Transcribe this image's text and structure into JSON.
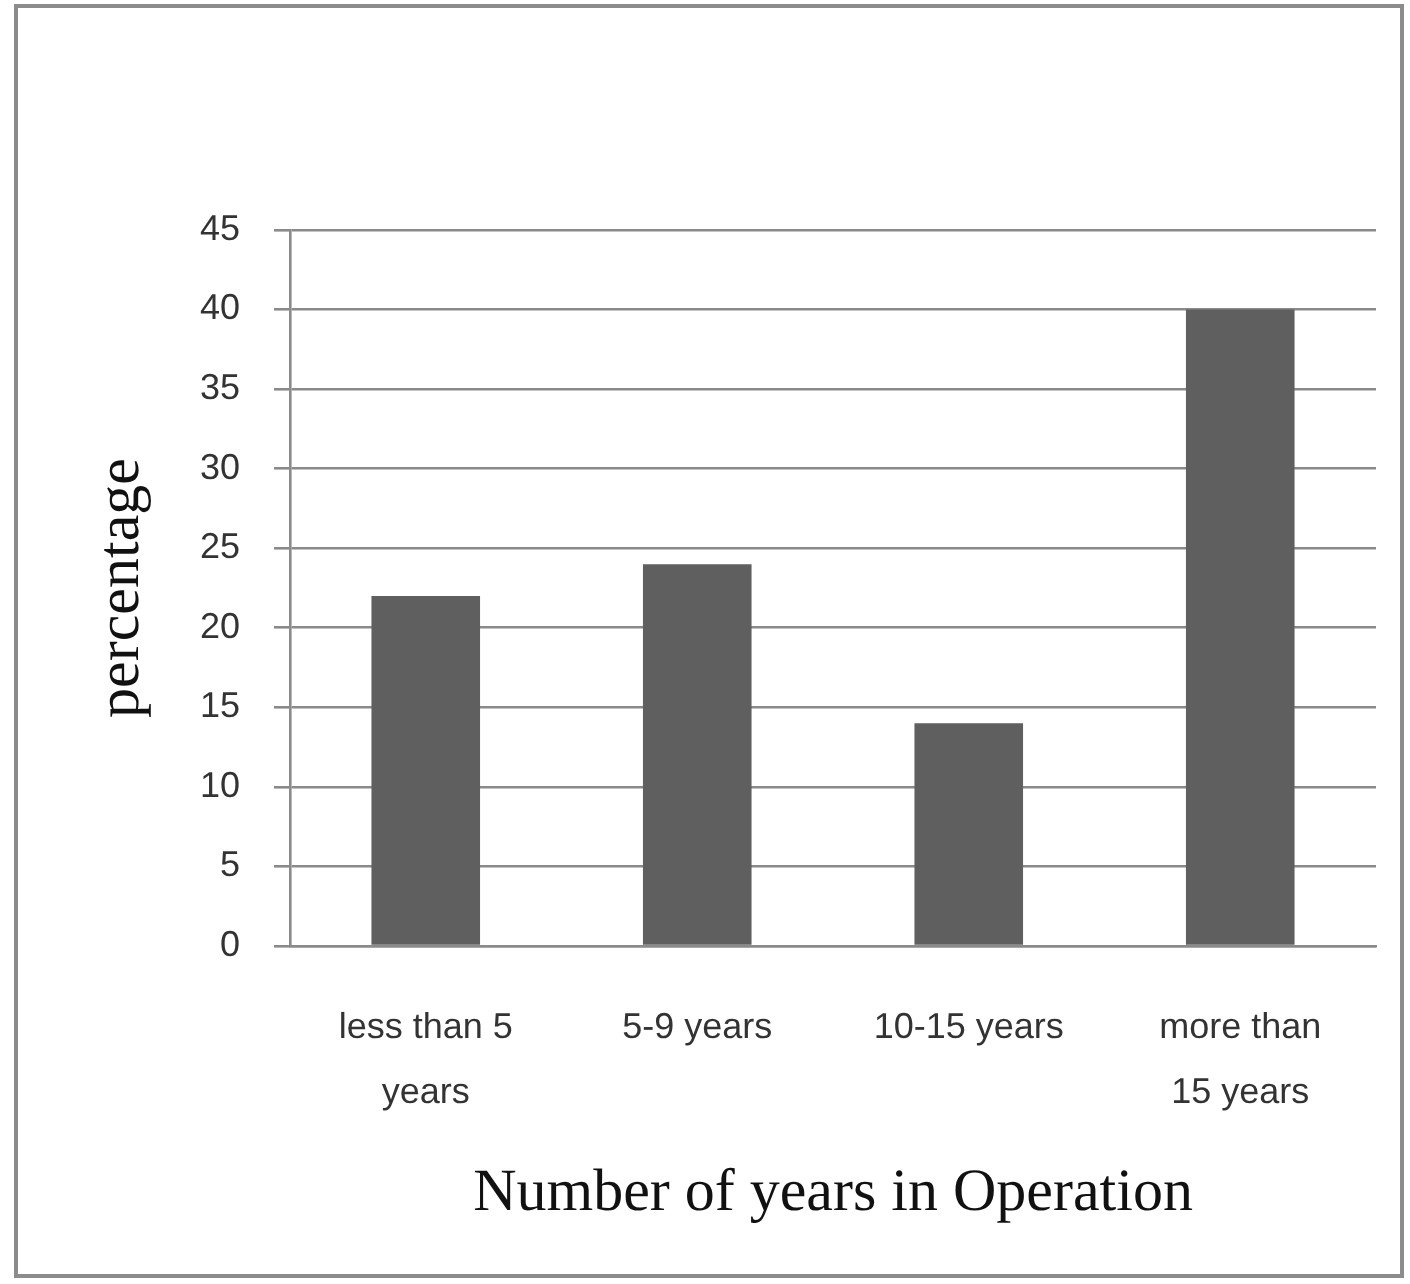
{
  "chart_data": {
    "type": "bar",
    "xlabel": "Number of years in Operation",
    "ylabel": "percentage",
    "categories": [
      "less than 5 years",
      "5-9 years",
      "10-15 years",
      "more than 15 years"
    ],
    "values": [
      22,
      24,
      14,
      40
    ],
    "color": "#5f5f5f",
    "ylim": [
      0,
      45
    ],
    "yticks": [
      0,
      5,
      10,
      15,
      20,
      25,
      30,
      35,
      40,
      45
    ],
    "grid": "y"
  }
}
